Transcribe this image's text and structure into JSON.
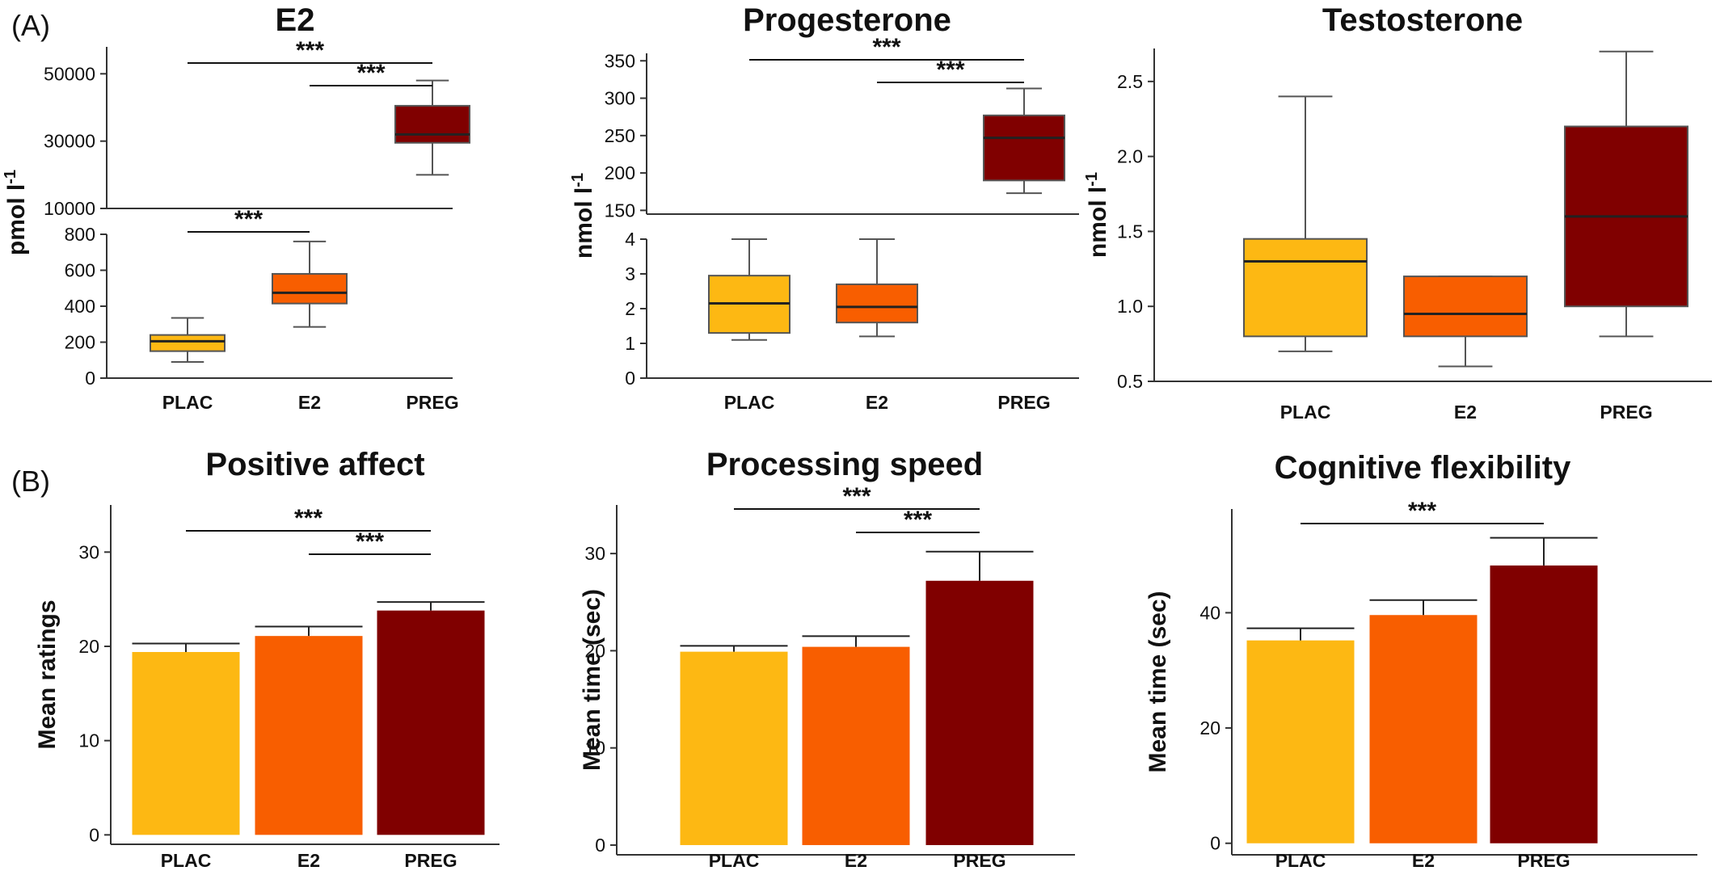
{
  "panel_labels": [
    "(A)",
    "(B)"
  ],
  "colors": {
    "PLAC": "#FDB813",
    "E2": "#F85E00",
    "PREG": "#800000",
    "axis": "#333333",
    "whisker": "#555555"
  },
  "chart_data": [
    {
      "type": "box",
      "title": "E2",
      "ylabel": "pmol l-1",
      "categories": [
        "PLAC",
        "E2",
        "PREG"
      ],
      "broken_axis": true,
      "segments": [
        {
          "ylim": [
            10000,
            58000
          ],
          "ticks": [
            10000,
            30000,
            50000
          ]
        },
        {
          "ylim": [
            0,
            800
          ],
          "ticks": [
            0,
            200,
            400,
            600,
            800
          ]
        }
      ],
      "boxes": [
        {
          "category": "PLAC",
          "min": 90,
          "q1": 150,
          "median": 205,
          "q3": 240,
          "max": 335
        },
        {
          "category": "E2",
          "min": 285,
          "q1": 415,
          "median": 475,
          "q3": 580,
          "max": 760
        },
        {
          "category": "PREG",
          "min": 20000,
          "q1": 29500,
          "median": 32000,
          "q3": 40500,
          "max": 48000
        }
      ],
      "significance": [
        {
          "from": "PLAC",
          "to": "PREG",
          "label": "***"
        },
        {
          "from": "E2",
          "to": "PREG",
          "label": "***"
        },
        {
          "from": "PLAC",
          "to": "E2",
          "label": "***"
        }
      ]
    },
    {
      "type": "box",
      "title": "Progesterone",
      "ylabel": "nmol l-1",
      "categories": [
        "PLAC",
        "E2",
        "PREG"
      ],
      "broken_axis": true,
      "segments": [
        {
          "ylim": [
            145,
            360
          ],
          "ticks": [
            150,
            200,
            250,
            300,
            350
          ]
        },
        {
          "ylim": [
            0,
            4
          ],
          "ticks": [
            0,
            1,
            2,
            3,
            4
          ]
        }
      ],
      "boxes": [
        {
          "category": "PLAC",
          "min": 1.1,
          "q1": 1.3,
          "median": 2.15,
          "q3": 2.95,
          "max": 4.0
        },
        {
          "category": "E2",
          "min": 1.2,
          "q1": 1.6,
          "median": 2.05,
          "q3": 2.7,
          "max": 4.0
        },
        {
          "category": "PREG",
          "min": 173,
          "q1": 190,
          "median": 247,
          "q3": 277,
          "max": 313
        }
      ],
      "significance": [
        {
          "from": "PLAC",
          "to": "PREG",
          "label": "***"
        },
        {
          "from": "E2",
          "to": "PREG",
          "label": "***"
        }
      ]
    },
    {
      "type": "box",
      "title": "Testosterone",
      "ylabel": "nmol l-1",
      "categories": [
        "PLAC",
        "E2",
        "PREG"
      ],
      "broken_axis": false,
      "ylim": [
        0.5,
        2.72
      ],
      "ticks": [
        0.5,
        1.0,
        1.5,
        2.0,
        2.5
      ],
      "boxes": [
        {
          "category": "PLAC",
          "min": 0.7,
          "q1": 0.8,
          "median": 1.3,
          "q3": 1.45,
          "max": 2.4
        },
        {
          "category": "E2",
          "min": 0.6,
          "q1": 0.8,
          "median": 0.95,
          "q3": 1.2,
          "max": 1.2
        },
        {
          "category": "PREG",
          "min": 0.8,
          "q1": 1.0,
          "median": 1.6,
          "q3": 2.2,
          "max": 2.7
        }
      ],
      "significance": []
    },
    {
      "type": "bar",
      "title": "Positive affect",
      "ylabel": "Mean ratings",
      "categories": [
        "PLAC",
        "E2",
        "PREG"
      ],
      "ylim": [
        -1,
        35
      ],
      "ticks": [
        0,
        10,
        20,
        30
      ],
      "values": [
        19.4,
        21.1,
        23.8
      ],
      "errors": [
        0.9,
        1.0,
        0.9
      ],
      "significance": [
        {
          "from": "PLAC",
          "to": "PREG",
          "label": "***"
        },
        {
          "from": "E2",
          "to": "PREG",
          "label": "***"
        }
      ]
    },
    {
      "type": "bar",
      "title": "Processing speed",
      "ylabel": "Mean time (sec)",
      "categories": [
        "PLAC",
        "E2",
        "PREG"
      ],
      "ylim": [
        -1,
        35
      ],
      "ticks": [
        0,
        10,
        20,
        30
      ],
      "values": [
        19.9,
        20.4,
        27.2
      ],
      "errors": [
        0.6,
        1.1,
        3.0
      ],
      "significance": [
        {
          "from": "PLAC",
          "to": "PREG",
          "label": "***"
        },
        {
          "from": "E2",
          "to": "PREG",
          "label": "***"
        }
      ]
    },
    {
      "type": "bar",
      "title": "Cognitive flexibility",
      "ylabel": "Mean time (sec)",
      "categories": [
        "PLAC",
        "E2",
        "PREG"
      ],
      "ylim": [
        -2,
        58
      ],
      "ticks": [
        0,
        20,
        40
      ],
      "values": [
        35.2,
        39.6,
        48.2
      ],
      "errors": [
        2.1,
        2.6,
        4.8
      ],
      "significance": [
        {
          "from": "PLAC",
          "to": "PREG",
          "label": "***"
        }
      ]
    }
  ]
}
